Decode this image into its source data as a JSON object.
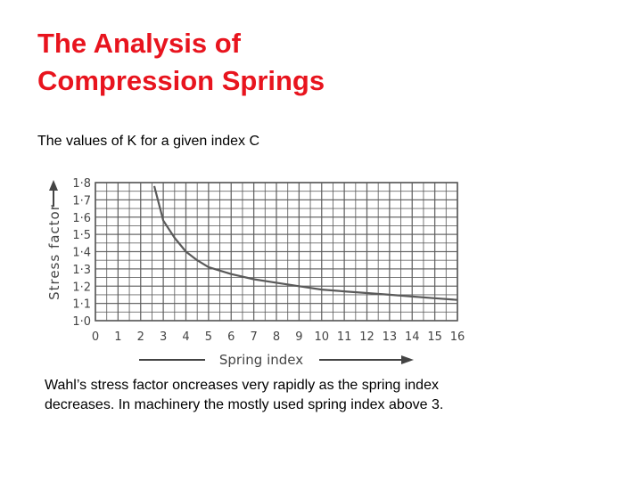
{
  "slide": {
    "title_line1": "The Analysis of",
    "title_line2": "Compression Springs",
    "subtitle": "The values of K for a given index C",
    "caption_line1": "Wahl’s stress factor oncreases very rapidly as the spring index",
    "caption_line2": "decreases. In machinery the mostly used spring index above 3.",
    "title_color": "#e8141e"
  },
  "chart_data": {
    "type": "line",
    "title": "",
    "xlabel": "Spring index",
    "ylabel": "Stress factor",
    "x_ticks": [
      "0",
      "1",
      "2",
      "3",
      "4",
      "5",
      "6",
      "7",
      "8",
      "9",
      "10",
      "11",
      "12",
      "13",
      "14",
      "15",
      "16"
    ],
    "y_ticks": [
      "1·0",
      "1·1",
      "1·2",
      "1·3",
      "1·4",
      "1·5",
      "1·6",
      "1·7",
      "1·8"
    ],
    "xlim": [
      0,
      16
    ],
    "ylim": [
      1.0,
      1.8
    ],
    "grid": true,
    "series": [
      {
        "x": [
          2.6,
          3,
          3.5,
          4,
          4.5,
          5,
          5.5,
          6,
          7,
          8,
          9,
          10,
          11,
          12,
          13,
          14,
          15,
          16
        ],
        "values": [
          1.78,
          1.58,
          1.48,
          1.4,
          1.35,
          1.31,
          1.29,
          1.27,
          1.24,
          1.22,
          1.2,
          1.18,
          1.17,
          1.16,
          1.15,
          1.14,
          1.13,
          1.12
        ]
      }
    ],
    "line_color": "#5a5a5a",
    "grid_color": "#5a5a5a"
  }
}
